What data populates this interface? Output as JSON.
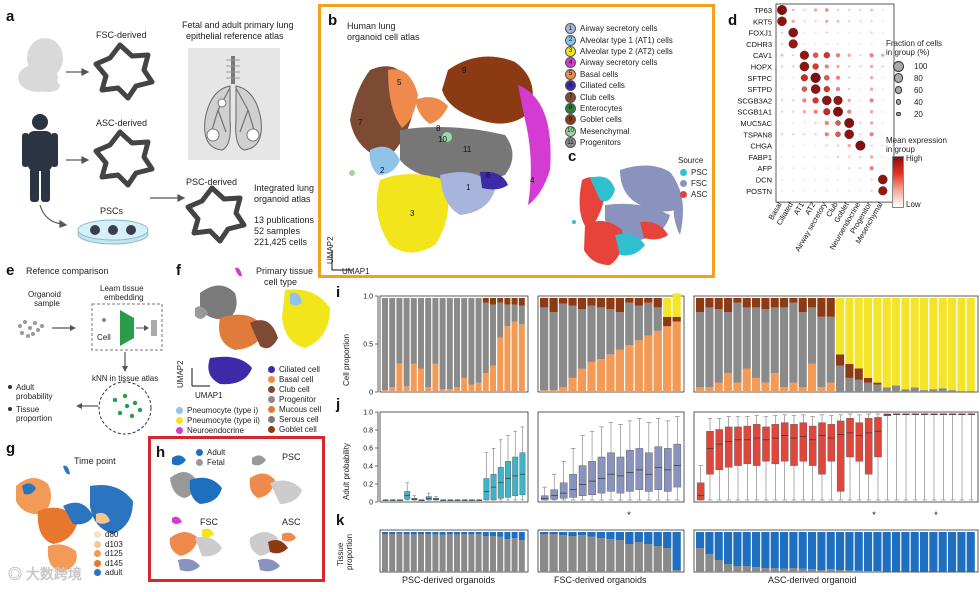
{
  "panel_a": {
    "label": "a",
    "fsc": "FSC-derived",
    "asc": "ASC-derived",
    "pscs": "PSCs",
    "psc": "PSC-derived",
    "atlas_title_1": "Fetal and adult primary lung",
    "atlas_title_2": "epithelial reference atlas",
    "integrated_1": "Integrated lung",
    "integrated_2": "organoid atlas",
    "stat_1": "13 publications",
    "stat_2": "52 samples",
    "stat_3": "221,425 cells"
  },
  "panel_b": {
    "label": "b",
    "title_1": "Human lung",
    "title_2": "organoid cell atlas",
    "umap1": "UMAP1",
    "umap2": "UMAP2",
    "border_color": "#f0a21a",
    "legend": [
      {
        "n": "1",
        "name": "Airway secretory cells",
        "color": "#a9b4dc"
      },
      {
        "n": "2",
        "name": "Alveolar type 1 (AT1) cells",
        "color": "#8fc3e8"
      },
      {
        "n": "3",
        "name": "Alveolar type 2 (AT2) cells",
        "color": "#f2e51c"
      },
      {
        "n": "4",
        "name": "Airway secretory cells",
        "color": "#d43bd1"
      },
      {
        "n": "5",
        "name": "Basal cells",
        "color": "#ee8a4c"
      },
      {
        "n": "6",
        "name": "Ciliated cells",
        "color": "#3d2aa8"
      },
      {
        "n": "7",
        "name": "Club cells",
        "color": "#7d4a33"
      },
      {
        "n": "8",
        "name": "Enterocytes",
        "color": "#2e7d3a"
      },
      {
        "n": "9",
        "name": "Goblet cells",
        "color": "#8b3a14"
      },
      {
        "n": "10",
        "name": "Mesenchymal",
        "color": "#9bd8a4"
      },
      {
        "n": "11",
        "name": "Progenitors",
        "color": "#8a8a8a"
      }
    ],
    "cluster_labels": [
      "1",
      "2",
      "3",
      "4",
      "5",
      "6",
      "7",
      "8",
      "9",
      "10",
      "11"
    ]
  },
  "panel_c": {
    "label": "c",
    "source_title": "Source",
    "sources": [
      {
        "name": "PSC",
        "color": "#2fc0d0"
      },
      {
        "name": "FSC",
        "color": "#8a93be"
      },
      {
        "name": "ASC",
        "color": "#e8433a"
      }
    ]
  },
  "panel_d": {
    "label": "d",
    "genes": [
      "TP63",
      "KRT5",
      "FOXJ1",
      "CDHR3",
      "CAV1",
      "HOPX",
      "SFTPC",
      "SFTPD",
      "SCGB3A2",
      "SCGB1A1",
      "MUC5AC",
      "TSPAN8",
      "CHGA",
      "FABP1",
      "AFP",
      "DCN",
      "POSTN"
    ],
    "groups": [
      "Basal",
      "Ciliated",
      "AT1",
      "AT2",
      "Airway secretory",
      "Club",
      "Goblet",
      "Neuroendocrine",
      "Progenitor",
      "Mesenchymal"
    ],
    "size_title_1": "Fraction of cells",
    "size_title_2": "in group (%)",
    "size_values": [
      "100",
      "80",
      "60",
      "40",
      "20"
    ],
    "color_title_1": "Mean expression",
    "color_title_2": "in group",
    "high": "High",
    "low": "Low",
    "matrix": [
      [
        0.95,
        0.15,
        0.1,
        0.2,
        0.25,
        0.1,
        0.1,
        0.1,
        0.15,
        0.05
      ],
      [
        0.9,
        0.2,
        0.1,
        0.1,
        0.2,
        0.15,
        0.1,
        0.1,
        0.1,
        0.05
      ],
      [
        0.1,
        0.9,
        0.05,
        0.05,
        0.1,
        0.05,
        0.05,
        0.05,
        0.1,
        0.05
      ],
      [
        0.1,
        0.85,
        0.05,
        0.05,
        0.05,
        0.05,
        0.05,
        0.05,
        0.05,
        0.05
      ],
      [
        0.15,
        0.1,
        0.85,
        0.4,
        0.5,
        0.3,
        0.2,
        0.1,
        0.3,
        0.2
      ],
      [
        0.1,
        0.1,
        0.9,
        0.5,
        0.3,
        0.2,
        0.1,
        0.1,
        0.2,
        0.1
      ],
      [
        0.05,
        0.05,
        0.6,
        0.98,
        0.4,
        0.3,
        0.1,
        0.05,
        0.2,
        0.05
      ],
      [
        0.05,
        0.05,
        0.4,
        0.9,
        0.5,
        0.3,
        0.1,
        0.05,
        0.2,
        0.05
      ],
      [
        0.1,
        0.1,
        0.3,
        0.5,
        0.9,
        0.85,
        0.2,
        0.05,
        0.3,
        0.05
      ],
      [
        0.1,
        0.1,
        0.2,
        0.3,
        0.6,
        0.95,
        0.3,
        0.05,
        0.2,
        0.05
      ],
      [
        0.05,
        0.05,
        0.05,
        0.1,
        0.3,
        0.4,
        0.95,
        0.1,
        0.2,
        0.05
      ],
      [
        0.1,
        0.1,
        0.1,
        0.1,
        0.3,
        0.4,
        0.9,
        0.1,
        0.3,
        0.05
      ],
      [
        0.05,
        0.05,
        0.05,
        0.05,
        0.1,
        0.1,
        0.2,
        0.95,
        0.1,
        0.05
      ],
      [
        0.05,
        0.05,
        0.05,
        0.05,
        0.05,
        0.1,
        0.1,
        0.1,
        0.2,
        0.05
      ],
      [
        0.05,
        0.05,
        0.05,
        0.05,
        0.05,
        0.05,
        0.1,
        0.1,
        0.3,
        0.05
      ],
      [
        0.05,
        0.05,
        0.05,
        0.05,
        0.05,
        0.05,
        0.05,
        0.05,
        0.1,
        0.9
      ],
      [
        0.05,
        0.05,
        0.05,
        0.05,
        0.05,
        0.05,
        0.05,
        0.05,
        0.1,
        0.85
      ]
    ]
  },
  "panel_e": {
    "label": "e",
    "title": "Refence comparison",
    "organoid_1": "Organoid",
    "organoid_2": "sample",
    "learn_1": "Learn tissue",
    "learn_2": "embedding",
    "cell": "Cell",
    "knn": "kNN in tissue atlas",
    "out_1a": "Adult",
    "out_1b": "probability",
    "out_2a": "Tissue",
    "out_2b": "proportion"
  },
  "panel_f": {
    "label": "f",
    "title_1": "Primary tissue",
    "title_2": "cell type",
    "umap1": "UMAP1",
    "umap2": "UMAP2",
    "legend_left": [
      {
        "name": "Pneumocyte (type i)",
        "color": "#8fc3e8"
      },
      {
        "name": "Pneumocyte (type ii)",
        "color": "#f2e51c"
      },
      {
        "name": "Neuroendocrine",
        "color": "#d43bd1"
      }
    ],
    "legend_right": [
      {
        "name": "Ciliated cell",
        "color": "#3d2aa8"
      },
      {
        "name": "Basal cell",
        "color": "#ee8a4c"
      },
      {
        "name": "Club cell",
        "color": "#7d4a33"
      },
      {
        "name": "Progenitor",
        "color": "#8a8a8a"
      },
      {
        "name": "Mucous cell",
        "color": "#e07b3a"
      },
      {
        "name": "Serous cell",
        "color": "#7a7a7a"
      },
      {
        "name": "Goblet cell",
        "color": "#8b3a14"
      }
    ]
  },
  "panel_g": {
    "label": "g",
    "title": "Time point",
    "legend": [
      {
        "name": "d80",
        "color": "#fbe1c4"
      },
      {
        "name": "d103",
        "color": "#f8c592"
      },
      {
        "name": "d125",
        "color": "#f29a56"
      },
      {
        "name": "d145",
        "color": "#e8772e"
      },
      {
        "name": "adult",
        "color": "#2a74c0"
      }
    ]
  },
  "panel_h": {
    "label": "h",
    "border_color": "#d6262e",
    "adult": "Adult",
    "fetal": "Fetal",
    "psc": "PSC",
    "fsc": "FSC",
    "asc": "ASC"
  },
  "panel_i": {
    "label": "i",
    "ylabel": "Cell proportion",
    "yticks": [
      "0",
      "0.5",
      "1.0"
    ]
  },
  "panel_j": {
    "label": "j",
    "ylabel": "Adult probability",
    "yticks": [
      "0",
      "0.2",
      "0.4",
      "0.6",
      "0.8",
      "1.0"
    ],
    "star": "*"
  },
  "panel_k": {
    "label": "k",
    "ylabel_1": "Tissue",
    "ylabel_2": "proportion",
    "groups": [
      "PSC-derived organoids",
      "FSC-derived organoids",
      "ASC-derived organoid"
    ]
  },
  "watermark": "大数跨境",
  "colors": {
    "grey": "#8a8a8a",
    "orange": "#f29a56",
    "brown": "#8b3a14",
    "yellow": "#f5e52a",
    "blue": "#1f6fc0",
    "teal": "#3fb3c7",
    "lavender": "#8a93be",
    "red": "#e0473c"
  },
  "chart_data": [
    {
      "type": "bar",
      "panel": "i",
      "ylabel": "Cell proportion",
      "ylim": [
        0,
        1
      ],
      "groups": [
        {
          "name": "PSC-derived organoids",
          "orange": [
            0.02,
            0.05,
            0.3,
            0.06,
            0.3,
            0.25,
            0.05,
            0.3,
            0.03,
            0.03,
            0.05,
            0.15,
            0.08,
            0.1,
            0.2,
            0.28,
            0.58,
            0.7,
            0.75,
            0.72
          ],
          "brown": [
            0.0,
            0.0,
            0.0,
            0.0,
            0.0,
            0.0,
            0.0,
            0.0,
            0.0,
            0.0,
            0.0,
            0.0,
            0.0,
            0.0,
            0.05,
            0.07,
            0.05,
            0.07,
            0.07,
            0.08
          ]
        },
        {
          "name": "FSC-derived organoids",
          "orange": [
            0.02,
            0.02,
            0.05,
            0.15,
            0.25,
            0.32,
            0.35,
            0.4,
            0.45,
            0.5,
            0.55,
            0.6,
            0.65,
            0.7,
            0.75
          ],
          "brown": [
            0.1,
            0.15,
            0.06,
            0.08,
            0.12,
            0.08,
            0.1,
            0.12,
            0.15,
            0.05,
            0.08,
            0.05,
            0.1,
            0.1,
            0.05
          ],
          "yellow": [
            0.0,
            0.0,
            0.0,
            0.0,
            0.0,
            0.0,
            0.0,
            0.0,
            0.0,
            0.0,
            0.0,
            0.0,
            0.0,
            0.2,
            0.25
          ]
        },
        {
          "name": "ASC-derived organoid",
          "orange": [
            0.05,
            0.05,
            0.1,
            0.2,
            0.1,
            0.25,
            0.15,
            0.1,
            0.2,
            0.05,
            0.1,
            0.05,
            0.3,
            0.05,
            0.1,
            0.0,
            0.0,
            0.0,
            0.0,
            0.0,
            0.0,
            0.0,
            0.0,
            0.0,
            0.0,
            0.0,
            0.0,
            0.0,
            0.0,
            0.0
          ],
          "brown": [
            0.15,
            0.1,
            0.12,
            0.15,
            0.05,
            0.1,
            0.1,
            0.12,
            0.1,
            0.1,
            0.05,
            0.15,
            0.1,
            0.2,
            0.2,
            0.12,
            0.15,
            0.12,
            0.05,
            0.02,
            0.0,
            0.0,
            0.0,
            0.0,
            0.0,
            0.0,
            0.0,
            0.0,
            0.0,
            0.0
          ],
          "yellow": [
            0.0,
            0.0,
            0.0,
            0.0,
            0.0,
            0.0,
            0.0,
            0.0,
            0.0,
            0.0,
            0.0,
            0.0,
            0.0,
            0.0,
            0.0,
            0.6,
            0.7,
            0.75,
            0.85,
            0.9,
            0.95,
            0.93,
            0.97,
            0.95,
            0.98,
            0.97,
            0.96,
            0.98,
            0.99,
            0.99
          ]
        }
      ]
    },
    {
      "type": "box",
      "panel": "j",
      "ylabel": "Adult probability",
      "ylim": [
        0,
        1
      ],
      "groups": [
        {
          "name": "PSC-derived organoids",
          "medians": [
            0,
            0,
            0,
            0.05,
            0.01,
            0,
            0.02,
            0.01,
            0,
            0,
            0,
            0,
            0,
            0,
            0.1,
            0.15,
            0.2,
            0.25,
            0.28,
            0.3
          ],
          "q1": [
            0,
            0,
            0,
            0.01,
            0,
            0,
            0,
            0,
            0,
            0,
            0,
            0,
            0,
            0,
            0,
            0,
            0.02,
            0.03,
            0.05,
            0.06
          ],
          "q3": [
            0,
            0,
            0,
            0.1,
            0.02,
            0,
            0.04,
            0.02,
            0,
            0,
            0,
            0,
            0,
            0,
            0.25,
            0.3,
            0.38,
            0.45,
            0.5,
            0.55
          ],
          "max": [
            0,
            0,
            0,
            0.2,
            0.05,
            0,
            0.08,
            0.04,
            0,
            0,
            0,
            0,
            0,
            0,
            0.55,
            0.6,
            0.7,
            0.75,
            0.8,
            0.85
          ]
        },
        {
          "name": "FSC-derived organoids",
          "medians": [
            0.02,
            0.05,
            0.08,
            0.12,
            0.18,
            0.22,
            0.25,
            0.3,
            0.28,
            0.32,
            0.35,
            0.3,
            0.38,
            0.35,
            0.4
          ],
          "q1": [
            0,
            0.01,
            0.02,
            0.03,
            0.05,
            0.06,
            0.08,
            0.1,
            0.08,
            0.1,
            0.12,
            0.1,
            0.12,
            0.1,
            0.15
          ],
          "q3": [
            0.05,
            0.12,
            0.2,
            0.3,
            0.4,
            0.45,
            0.5,
            0.55,
            0.5,
            0.58,
            0.6,
            0.55,
            0.62,
            0.6,
            0.65
          ],
          "max": [
            0.15,
            0.3,
            0.45,
            0.6,
            0.75,
            0.8,
            0.85,
            0.9,
            0.88,
            0.92,
            0.95,
            0.9,
            0.95,
            0.92,
            0.97
          ]
        },
        {
          "name": "ASC-derived organoid",
          "medians": [
            0.05,
            0.6,
            0.65,
            0.68,
            0.7,
            0.7,
            0.72,
            0.7,
            0.72,
            0.75,
            0.72,
            0.74,
            0.7,
            0.75,
            0.72,
            0.76,
            0.78,
            0.75,
            0.78,
            0.8,
            0.99,
            1,
            1,
            1,
            1,
            1,
            1,
            1,
            1,
            1
          ],
          "q1": [
            0,
            0.3,
            0.35,
            0.38,
            0.4,
            0.42,
            0.4,
            0.45,
            0.42,
            0.45,
            0.4,
            0.45,
            0.4,
            0.3,
            0.45,
            0.1,
            0.5,
            0.45,
            0.3,
            0.5,
            0.98,
            1,
            1,
            1,
            1,
            1,
            1,
            1,
            1,
            1
          ],
          "q3": [
            0.2,
            0.8,
            0.82,
            0.85,
            0.85,
            0.86,
            0.88,
            0.85,
            0.88,
            0.9,
            0.88,
            0.9,
            0.86,
            0.9,
            0.88,
            0.92,
            0.95,
            0.9,
            0.95,
            0.96,
            1,
            1,
            1,
            1,
            1,
            1,
            1,
            1,
            1,
            1
          ],
          "max": [
            0.4,
            0.95,
            0.95,
            0.97,
            0.97,
            0.97,
            0.98,
            0.97,
            0.98,
            0.99,
            0.98,
            0.99,
            0.97,
            0.99,
            0.98,
            0.99,
            1,
            0.99,
            1,
            1,
            1,
            1,
            1,
            1,
            1,
            1,
            1,
            1,
            1,
            1
          ]
        }
      ]
    },
    {
      "type": "bar",
      "panel": "k",
      "ylabel": "Tissue proportion",
      "ylim": [
        0,
        1
      ],
      "groups": [
        {
          "name": "PSC-derived organoids",
          "adult": [
            0.05,
            0.05,
            0.04,
            0.05,
            0.06,
            0.05,
            0.05,
            0.06,
            0.07,
            0.05,
            0.06,
            0.05,
            0.06,
            0.05,
            0.1,
            0.1,
            0.12,
            0.18,
            0.15,
            0.2
          ]
        },
        {
          "name": "FSC-derived organoids",
          "adult": [
            0.05,
            0.05,
            0.08,
            0.1,
            0.08,
            0.12,
            0.15,
            0.18,
            0.2,
            0.3,
            0.25,
            0.3,
            0.35,
            0.4,
            0.95
          ]
        },
        {
          "name": "ASC-derived organoid",
          "adult": [
            0.4,
            0.55,
            0.7,
            0.8,
            0.85,
            0.85,
            0.88,
            0.9,
            0.9,
            0.92,
            0.9,
            0.92,
            0.93,
            0.95,
            0.93,
            0.95,
            0.96,
            0.97,
            0.98,
            0.98,
            1,
            1,
            1,
            1,
            1,
            1,
            1,
            1,
            1,
            1
          ]
        }
      ]
    }
  ]
}
